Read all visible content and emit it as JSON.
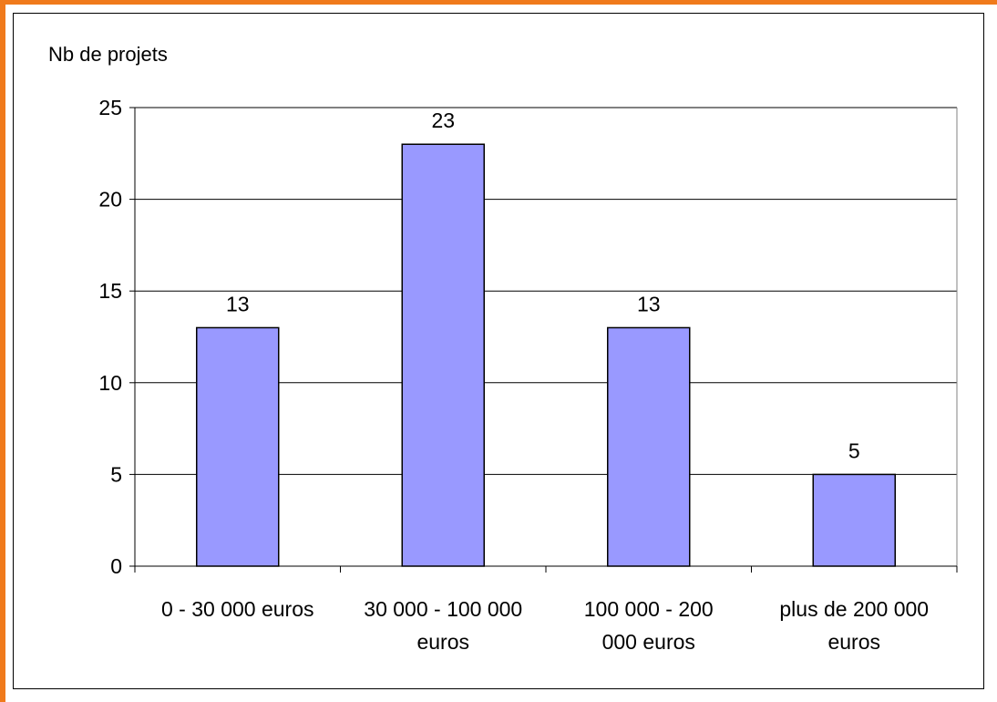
{
  "chart_data": {
    "type": "bar",
    "title": "",
    "xlabel": "",
    "ylabel": "Nb de projets",
    "categories": [
      [
        "0 - 30 000 euros"
      ],
      [
        "30 000 - 100 000",
        "euros"
      ],
      [
        "100 000 - 200",
        "000 euros"
      ],
      [
        "plus de 200 000",
        "euros"
      ]
    ],
    "values": [
      13,
      23,
      13,
      5
    ],
    "data_labels": [
      "13",
      "23",
      "13",
      "5"
    ],
    "ylim": [
      0,
      25
    ],
    "yticks": [
      0,
      5,
      10,
      15,
      20,
      25
    ],
    "grid": true,
    "legend": "none",
    "colors": {
      "bar": "#9999ff",
      "frame": "#f07a1c",
      "grid": "#000000"
    }
  }
}
